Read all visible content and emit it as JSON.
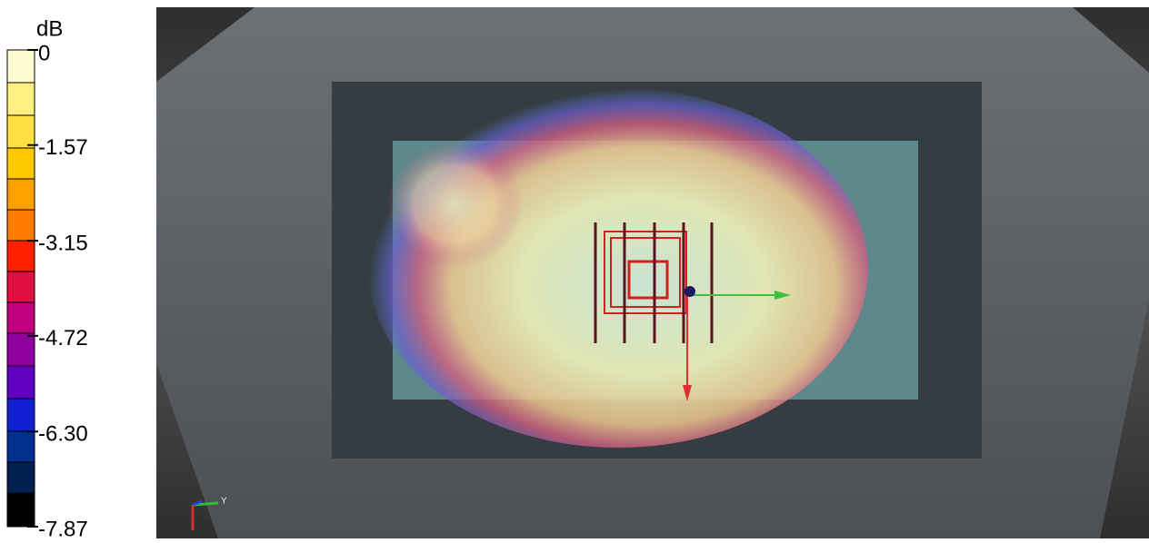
{
  "colorbar": {
    "unit": "dB",
    "ticks": [
      0,
      -1.57,
      -3.15,
      -4.72,
      {
        "value": -6.3,
        "label": "-6.30"
      },
      -7.87
    ]
  },
  "axis_triad_label": "Y"
}
